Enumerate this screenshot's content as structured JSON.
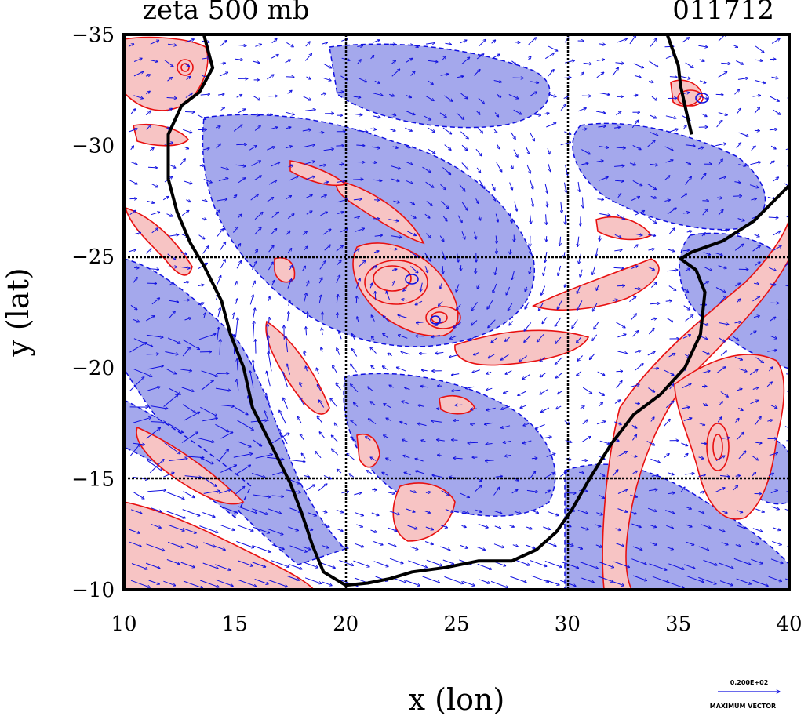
{
  "figure": {
    "title_left": "zeta 500 mb",
    "title_right": "011712",
    "xlabel": "x (lon)",
    "ylabel": "y (lat)",
    "legend": {
      "value_label": "0.200E+02",
      "caption": "MAXIMUM VECTOR"
    }
  },
  "axes": {
    "x_ticks": [
      "10",
      "15",
      "20",
      "25",
      "30",
      "35",
      "40"
    ],
    "y_ticks": [
      "−35",
      "−30",
      "−25",
      "−20",
      "−15",
      "−10"
    ]
  },
  "colors": {
    "positive_fill": "#f7c4c4",
    "positive_line": "#e81010",
    "negative_fill": "#a4a8ec",
    "negative_line": "#1010e0",
    "vector": "#1010e0",
    "coast": "#000000"
  },
  "map_data": {
    "type": "contour-vector map",
    "field": "relative vorticity (zeta), 500 mb, with wind vectors",
    "xlim": [
      10,
      40
    ],
    "ylim": [
      -35,
      -10
    ],
    "gridlines_lon": [
      20,
      30
    ],
    "gridlines_lat": [
      -25,
      -15
    ],
    "coastline": [
      [
        13.6,
        -35
      ],
      [
        14.0,
        -33.5
      ],
      [
        13.4,
        -32.4
      ],
      [
        12.6,
        -31.8
      ],
      [
        12.0,
        -30.5
      ],
      [
        12.0,
        -28.5
      ],
      [
        12.4,
        -27.0
      ],
      [
        13.0,
        -25.6
      ],
      [
        13.6,
        -24.6
      ],
      [
        14.4,
        -23.0
      ],
      [
        14.8,
        -21.5
      ],
      [
        15.4,
        -20.0
      ],
      [
        15.8,
        -18.2
      ],
      [
        16.6,
        -16.6
      ],
      [
        17.5,
        -14.8
      ],
      [
        18.0,
        -13.5
      ],
      [
        18.5,
        -12.0
      ],
      [
        19.0,
        -10.8
      ],
      [
        20.0,
        -10.2
      ],
      [
        21.0,
        -10.3
      ],
      [
        22.0,
        -10.5
      ],
      [
        23.0,
        -10.8
      ],
      [
        24.5,
        -11.0
      ],
      [
        26.0,
        -11.3
      ],
      [
        27.5,
        -11.3
      ],
      [
        28.6,
        -11.8
      ],
      [
        29.5,
        -12.6
      ],
      [
        30.2,
        -13.6
      ],
      [
        31.0,
        -15.0
      ],
      [
        32.0,
        -16.6
      ],
      [
        33.0,
        -17.9
      ],
      [
        34.2,
        -18.8
      ],
      [
        35.3,
        -20.0
      ],
      [
        36.0,
        -21.5
      ],
      [
        36.2,
        -23.4
      ],
      [
        35.8,
        -24.4
      ],
      [
        35.1,
        -24.9
      ],
      [
        35.6,
        -25.2
      ],
      [
        37.0,
        -25.7
      ],
      [
        38.4,
        -26.6
      ],
      [
        40.0,
        -28.2
      ]
    ],
    "coastline_north": [
      [
        34.5,
        -35
      ],
      [
        35.0,
        -33.6
      ],
      [
        35.1,
        -32.7
      ],
      [
        35.3,
        -31.8
      ],
      [
        35.6,
        -30.5
      ]
    ]
  }
}
